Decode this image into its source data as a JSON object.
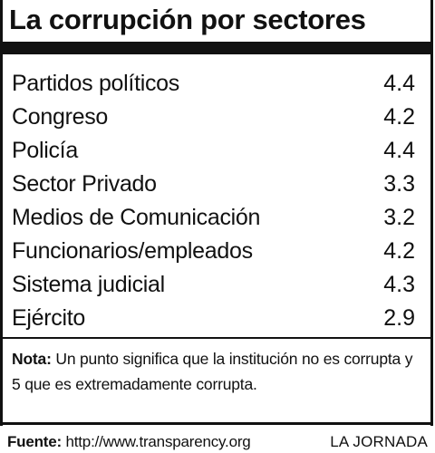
{
  "chart_data": {
    "type": "table",
    "title": "La corrupción por sectores",
    "categories": [
      "Partidos políticos",
      "Congreso",
      "Policía",
      "Sector Privado",
      "Medios de Comunicación",
      "Funcionarios/empleados",
      "Sistema judicial",
      "Ejército"
    ],
    "values": [
      "4.4",
      "4.2",
      "4.4",
      "3.3",
      "3.2",
      "4.2",
      "4.3",
      "2.9"
    ]
  },
  "note": {
    "label": "Nota:",
    "text": " Un punto significa que la institución no es corrupta y 5 que es extremadamente corrupta."
  },
  "footer": {
    "source_label": "Fuente:",
    "source_text": " http://www.transparency.org",
    "brand": "LA JORNADA"
  }
}
